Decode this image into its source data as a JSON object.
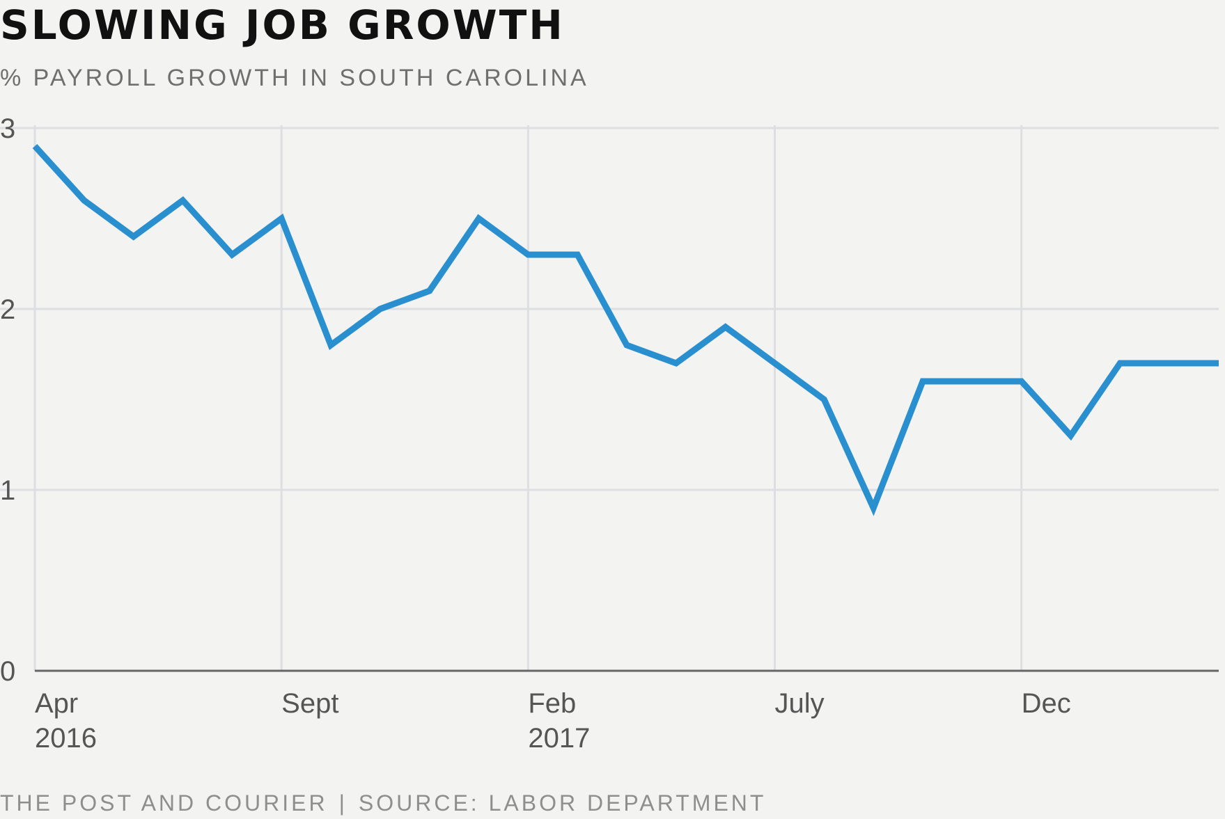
{
  "chart_data": {
    "type": "line",
    "title": "SLOWING JOB GROWTH",
    "subtitle": "% PAYROLL GROWTH IN SOUTH CAROLINA",
    "ylim": [
      0,
      3
    ],
    "y_ticks": [
      "0",
      "1",
      "2",
      "3"
    ],
    "x_tick_labels": [
      {
        "month": "Apr",
        "year": "2016",
        "index": 0
      },
      {
        "month": "Sept",
        "year": "",
        "index": 5
      },
      {
        "month": "Feb",
        "year": "2017",
        "index": 10
      },
      {
        "month": "July",
        "year": "",
        "index": 15
      },
      {
        "month": "Dec",
        "year": "",
        "index": 20
      }
    ],
    "x": [
      "Apr 2016",
      "May 2016",
      "Jun 2016",
      "Jul 2016",
      "Aug 2016",
      "Sep 2016",
      "Oct 2016",
      "Nov 2016",
      "Dec 2016",
      "Jan 2017",
      "Feb 2017",
      "Mar 2017",
      "Apr 2017",
      "May 2017",
      "Jun 2017",
      "Jul 2017",
      "Aug 2017",
      "Sep 2017",
      "Oct 2017",
      "Nov 2017",
      "Dec 2017",
      "Jan 2018",
      "Feb 2018",
      "Mar 2018",
      "Apr 2018"
    ],
    "series": [
      {
        "values": [
          2.9,
          2.6,
          2.4,
          2.6,
          2.3,
          2.5,
          1.8,
          2.0,
          2.1,
          2.5,
          2.3,
          2.3,
          1.8,
          1.7,
          1.9,
          1.7,
          1.5,
          0.9,
          1.6,
          1.6,
          1.6,
          1.3,
          1.7,
          1.7,
          1.7
        ],
        "color": "#2a8fcf"
      }
    ],
    "grid": true
  },
  "footer": {
    "publisher": "THE POST AND COURIER",
    "separator": "|",
    "source": "SOURCE: LABOR DEPARTMENT"
  }
}
